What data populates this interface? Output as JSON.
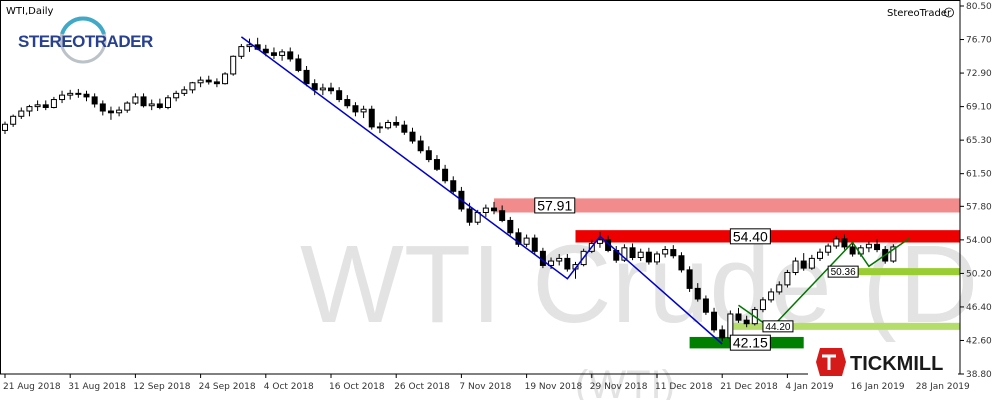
{
  "chart_data": {
    "type": "candlestick",
    "symbol_label": "WTI,Daily",
    "brand_label": "StereoTrader",
    "watermark": "WTI Crude (D",
    "watermark_sub": "(WTI)",
    "y_ticks": [
      "80.50",
      "76.70",
      "72.90",
      "69.10",
      "65.30",
      "61.50",
      "57.80",
      "54.00",
      "50.20",
      "46.40",
      "42.60",
      "38.80"
    ],
    "ylim": [
      38.8,
      80.5
    ],
    "x_ticks": [
      "21 Aug 2018",
      "31 Aug 2018",
      "12 Sep 2018",
      "24 Sep 2018",
      "4 Oct 2018",
      "16 Oct 2018",
      "26 Oct 2018",
      "7 Nov 2018",
      "19 Nov 2018",
      "29 Nov 2018",
      "11 Dec 2018",
      "21 Dec 2018",
      "4 Jan 2019",
      "16 Jan 2019",
      "28 Jan 2019"
    ],
    "zones": [
      {
        "label": "57.91",
        "from": 57.1,
        "to": 58.7,
        "color": "#f28b8b"
      },
      {
        "label": "54.40",
        "from": 53.7,
        "to": 55.1,
        "color": "#ee0000"
      },
      {
        "label": "50.36",
        "from": 50.0,
        "to": 50.8,
        "color": "#9acd32"
      },
      {
        "label": "44.20",
        "from": 43.8,
        "to": 44.6,
        "color": "#b5dd6a"
      },
      {
        "label": "42.15",
        "from": 41.7,
        "to": 43.0,
        "color": "#008000"
      }
    ],
    "candles": [
      [
        66.4,
        67.4,
        66.0,
        67.1
      ],
      [
        67.1,
        68.2,
        66.8,
        68.0
      ],
      [
        68.0,
        69.0,
        67.7,
        68.6
      ],
      [
        68.6,
        69.3,
        68.0,
        69.1
      ],
      [
        69.1,
        69.8,
        68.6,
        69.3
      ],
      [
        69.3,
        69.8,
        68.7,
        69.0
      ],
      [
        69.0,
        70.2,
        68.9,
        69.9
      ],
      [
        69.9,
        70.9,
        69.5,
        70.4
      ],
      [
        70.4,
        71.0,
        69.9,
        70.6
      ],
      [
        70.6,
        71.1,
        70.1,
        70.5
      ],
      [
        70.5,
        70.9,
        69.7,
        70.2
      ],
      [
        70.2,
        70.6,
        69.0,
        69.4
      ],
      [
        69.4,
        69.8,
        68.1,
        68.6
      ],
      [
        68.6,
        69.1,
        67.6,
        68.4
      ],
      [
        68.4,
        69.1,
        68.0,
        68.7
      ],
      [
        68.7,
        69.7,
        68.4,
        69.5
      ],
      [
        69.5,
        70.6,
        69.3,
        70.2
      ],
      [
        70.2,
        70.6,
        69.0,
        69.2
      ],
      [
        69.2,
        69.9,
        68.7,
        69.4
      ],
      [
        69.4,
        70.0,
        68.8,
        69.0
      ],
      [
        69.0,
        70.4,
        68.8,
        70.1
      ],
      [
        70.1,
        70.9,
        69.7,
        70.6
      ],
      [
        70.6,
        71.4,
        70.3,
        71.0
      ],
      [
        71.0,
        71.9,
        70.6,
        71.8
      ],
      [
        71.8,
        72.5,
        71.3,
        72.1
      ],
      [
        72.1,
        72.6,
        71.6,
        71.9
      ],
      [
        71.9,
        72.3,
        71.3,
        71.7
      ],
      [
        71.7,
        73.0,
        71.6,
        72.8
      ],
      [
        72.8,
        74.9,
        72.6,
        74.8
      ],
      [
        74.8,
        76.2,
        74.5,
        75.9
      ],
      [
        75.9,
        76.8,
        75.3,
        76.1
      ],
      [
        76.1,
        76.9,
        75.5,
        75.6
      ],
      [
        75.6,
        76.1,
        74.8,
        75.2
      ],
      [
        75.2,
        75.8,
        74.5,
        74.9
      ],
      [
        74.9,
        75.6,
        74.3,
        75.3
      ],
      [
        75.3,
        75.8,
        74.2,
        74.5
      ],
      [
        74.5,
        75.0,
        73.0,
        73.2
      ],
      [
        73.2,
        73.7,
        71.4,
        71.7
      ],
      [
        71.7,
        72.2,
        70.4,
        71.0
      ],
      [
        71.0,
        71.7,
        70.4,
        71.2
      ],
      [
        71.2,
        71.8,
        70.5,
        70.9
      ],
      [
        70.9,
        71.3,
        69.6,
        69.9
      ],
      [
        69.9,
        70.4,
        68.9,
        69.2
      ],
      [
        69.2,
        69.6,
        68.0,
        68.5
      ],
      [
        68.5,
        69.2,
        67.8,
        68.8
      ],
      [
        68.8,
        69.2,
        66.5,
        66.8
      ],
      [
        66.8,
        67.3,
        66.1,
        66.7
      ],
      [
        66.7,
        67.6,
        66.5,
        67.3
      ],
      [
        67.3,
        68.0,
        66.7,
        67.0
      ],
      [
        67.0,
        67.5,
        65.9,
        66.2
      ],
      [
        66.2,
        66.7,
        64.9,
        65.2
      ],
      [
        65.2,
        65.8,
        63.8,
        64.1
      ],
      [
        64.1,
        64.6,
        62.8,
        63.1
      ],
      [
        63.1,
        63.6,
        61.8,
        62.0
      ],
      [
        62.0,
        62.5,
        60.4,
        60.7
      ],
      [
        60.7,
        61.2,
        59.2,
        59.5
      ],
      [
        59.5,
        60.0,
        57.2,
        57.5
      ],
      [
        57.5,
        58.2,
        55.6,
        56.0
      ],
      [
        56.0,
        57.4,
        55.7,
        57.1
      ],
      [
        57.1,
        58.0,
        56.6,
        57.6
      ],
      [
        57.6,
        58.3,
        56.9,
        57.3
      ],
      [
        57.3,
        57.9,
        56.0,
        56.2
      ],
      [
        56.2,
        56.6,
        54.5,
        54.8
      ],
      [
        54.8,
        55.3,
        53.2,
        53.5
      ],
      [
        53.5,
        54.6,
        53.2,
        54.2
      ],
      [
        54.2,
        54.6,
        52.4,
        52.7
      ],
      [
        52.7,
        53.1,
        50.8,
        51.1
      ],
      [
        51.1,
        52.0,
        50.7,
        51.6
      ],
      [
        51.6,
        52.4,
        51.1,
        51.9
      ],
      [
        51.9,
        52.4,
        50.4,
        50.7
      ],
      [
        50.7,
        51.5,
        49.6,
        51.2
      ],
      [
        51.2,
        53.0,
        51.0,
        52.7
      ],
      [
        52.7,
        54.0,
        52.5,
        53.6
      ],
      [
        53.6,
        54.9,
        53.1,
        54.0
      ],
      [
        54.0,
        54.5,
        52.6,
        52.8
      ],
      [
        52.8,
        53.3,
        51.4,
        51.7
      ],
      [
        51.7,
        53.5,
        51.5,
        53.1
      ],
      [
        53.1,
        53.6,
        51.7,
        52.0
      ],
      [
        52.0,
        53.0,
        51.6,
        52.6
      ],
      [
        52.6,
        53.1,
        51.2,
        51.5
      ],
      [
        51.5,
        52.7,
        51.2,
        52.4
      ],
      [
        52.4,
        53.3,
        52.0,
        52.9
      ],
      [
        52.9,
        53.4,
        51.9,
        52.2
      ],
      [
        52.2,
        52.6,
        50.3,
        50.6
      ],
      [
        50.6,
        51.0,
        48.1,
        48.5
      ],
      [
        48.5,
        49.1,
        47.0,
        47.3
      ],
      [
        47.3,
        47.7,
        45.5,
        45.8
      ],
      [
        45.8,
        46.3,
        43.5,
        43.8
      ],
      [
        43.8,
        44.3,
        42.5,
        42.9
      ],
      [
        42.9,
        46.0,
        42.4,
        45.6
      ],
      [
        45.6,
        46.3,
        44.6,
        44.9
      ],
      [
        44.9,
        45.4,
        44.1,
        44.5
      ],
      [
        44.5,
        46.4,
        44.3,
        46.1
      ],
      [
        46.1,
        47.5,
        45.8,
        47.2
      ],
      [
        47.2,
        48.5,
        46.9,
        48.1
      ],
      [
        48.1,
        49.3,
        47.8,
        48.9
      ],
      [
        48.9,
        50.6,
        48.6,
        50.3
      ],
      [
        50.3,
        52.0,
        50.0,
        51.6
      ],
      [
        51.6,
        52.5,
        50.5,
        50.8
      ],
      [
        50.8,
        52.3,
        50.6,
        51.9
      ],
      [
        51.9,
        53.0,
        51.6,
        52.6
      ],
      [
        52.6,
        53.6,
        52.2,
        53.3
      ],
      [
        53.3,
        54.4,
        53.0,
        54.1
      ],
      [
        54.1,
        54.6,
        52.9,
        53.2
      ],
      [
        53.2,
        53.7,
        52.1,
        52.4
      ],
      [
        52.4,
        53.4,
        52.1,
        53.1
      ],
      [
        53.1,
        53.8,
        52.6,
        53.5
      ],
      [
        53.5,
        54.1,
        52.6,
        52.9
      ],
      [
        52.9,
        53.3,
        51.3,
        51.6
      ],
      [
        51.6,
        53.5,
        51.4,
        53.2
      ]
    ],
    "trend_lines": [
      {
        "color": "#0000cc",
        "points": [
          [
            29,
            77.0
          ],
          [
            69,
            49.6
          ],
          [
            73,
            54.4
          ],
          [
            88,
            42.2
          ]
        ]
      },
      {
        "color": "#007700",
        "points": [
          [
            90,
            46.6
          ],
          [
            94,
            44.0
          ],
          [
            104,
            53.7
          ],
          [
            106,
            51.0
          ],
          [
            111,
            54.2
          ]
        ]
      }
    ]
  }
}
